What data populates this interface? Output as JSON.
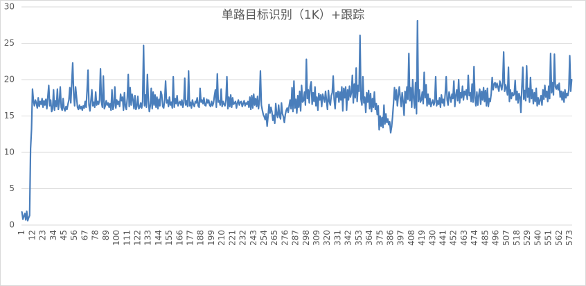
{
  "chart_data": {
    "type": "line",
    "title": "单路目标识别（1K）+跟踪",
    "color": "#4a7ebb",
    "grid": true,
    "ylim": [
      0,
      30
    ],
    "yticks": [
      0,
      5,
      10,
      15,
      20,
      25,
      30
    ],
    "categories": [
      "1",
      null,
      null,
      null,
      null,
      null,
      null,
      null,
      null,
      null,
      null,
      "12",
      null,
      null,
      null,
      null,
      null,
      null,
      null,
      null,
      null,
      null,
      "23",
      null,
      null,
      null,
      null,
      null,
      null,
      null,
      null,
      null,
      null,
      "34",
      null,
      null,
      null,
      null,
      null,
      null,
      null,
      null,
      null,
      null,
      "45",
      null,
      null,
      null,
      null,
      null,
      null,
      null,
      null,
      null,
      null,
      "56",
      null,
      null,
      null,
      null,
      null,
      null,
      null,
      null,
      null,
      null,
      "67",
      null,
      null,
      null,
      null,
      null,
      null,
      null,
      null,
      null,
      null,
      "78",
      null,
      null,
      null,
      null,
      null,
      null,
      null,
      null,
      null,
      null,
      "89",
      null,
      null,
      null,
      null,
      null,
      null,
      null,
      null,
      null,
      null,
      "100",
      null,
      null,
      null,
      null,
      null,
      null,
      null,
      null,
      null,
      null,
      "111",
      null,
      null,
      null,
      null,
      null,
      null,
      null,
      null,
      null,
      null,
      "122",
      null,
      null,
      null,
      null,
      null,
      null,
      null,
      null,
      null,
      null,
      "133",
      null,
      null,
      null,
      null,
      null,
      null,
      null,
      null,
      null,
      null,
      "144",
      null,
      null,
      null,
      null,
      null,
      null,
      null,
      null,
      null,
      null,
      "155",
      null,
      null,
      null,
      null,
      null,
      null,
      null,
      null,
      null,
      null,
      "166",
      null,
      null,
      null,
      null,
      null,
      null,
      null,
      null,
      null,
      null,
      "177",
      null,
      null,
      null,
      null,
      null,
      null,
      null,
      null,
      null,
      null,
      "188",
      null,
      null,
      null,
      null,
      null,
      null,
      null,
      null,
      null,
      null,
      "199",
      null,
      null,
      null,
      null,
      null,
      null,
      null,
      null,
      null,
      null,
      "210",
      null,
      null,
      null,
      null,
      null,
      null,
      null,
      null,
      null,
      null,
      "221",
      null,
      null,
      null,
      null,
      null,
      null,
      null,
      null,
      null,
      null,
      "232",
      null,
      null,
      null,
      null,
      null,
      null,
      null,
      null,
      null,
      null,
      "243",
      null,
      null,
      null,
      null,
      null,
      null,
      null,
      null,
      null,
      null,
      "254",
      null,
      null,
      null,
      null,
      null,
      null,
      null,
      null,
      null,
      null,
      "265",
      null,
      null,
      null,
      null,
      null,
      null,
      null,
      null,
      null,
      null,
      "276",
      null,
      null,
      null,
      null,
      null,
      null,
      null,
      null,
      null,
      null,
      "287",
      null,
      null,
      null,
      null,
      null,
      null,
      null,
      null,
      null,
      null,
      "298",
      null,
      null,
      null,
      null,
      null,
      null,
      null,
      null,
      null,
      null,
      "309",
      null,
      null,
      null,
      null,
      null,
      null,
      null,
      null,
      null,
      null,
      "320",
      null,
      null,
      null,
      null,
      null,
      null,
      null,
      null,
      null,
      null,
      "331",
      null,
      null,
      null,
      null,
      null,
      null,
      null,
      null,
      null,
      null,
      "342",
      null,
      null,
      null,
      null,
      null,
      null,
      null,
      null,
      null,
      null,
      "353",
      null,
      null,
      null,
      null,
      null,
      null,
      null,
      null,
      null,
      null,
      "364",
      null,
      null,
      null,
      null,
      null,
      null,
      null,
      null,
      null,
      null,
      "375",
      null,
      null,
      null,
      null,
      null,
      null,
      null,
      null,
      null,
      null,
      "386",
      null,
      null,
      null,
      null,
      null,
      null,
      null,
      null,
      null,
      null,
      "397",
      null,
      null,
      null,
      null,
      null,
      null,
      null,
      null,
      null,
      null,
      "408",
      null,
      null,
      null,
      null,
      null,
      null,
      null,
      null,
      null,
      null,
      "419",
      null,
      null,
      null,
      null,
      null,
      null,
      null,
      null,
      null,
      null,
      "430",
      null,
      null,
      null,
      null,
      null,
      null,
      null,
      null,
      null,
      null,
      "441",
      null,
      null,
      null,
      null,
      null,
      null,
      null,
      null,
      null,
      null,
      "452",
      null,
      null,
      null,
      null,
      null,
      null,
      null,
      null,
      null,
      null,
      "463",
      null,
      null,
      null,
      null,
      null,
      null,
      null,
      null,
      null,
      null,
      "474",
      null,
      null,
      null,
      null,
      null,
      null,
      null,
      null,
      null,
      null,
      "485",
      null,
      null,
      null,
      null,
      null,
      null,
      null,
      null,
      null,
      null,
      "496",
      null,
      null,
      null,
      null,
      null,
      null,
      null,
      null,
      null,
      null,
      "507",
      null,
      null,
      null,
      null,
      null,
      null,
      null,
      null,
      null,
      null,
      "518",
      null,
      null,
      null,
      null,
      null,
      null,
      null,
      null,
      null,
      null,
      "529",
      null,
      null,
      null,
      null,
      null,
      null,
      null,
      null,
      null,
      null,
      "540",
      null,
      null,
      null,
      null,
      null,
      null,
      null,
      null,
      null,
      null,
      "551",
      null,
      null,
      null,
      null,
      null,
      null,
      null,
      null,
      null,
      null,
      "562",
      null,
      null,
      null,
      null,
      null,
      null,
      null,
      null,
      null,
      null,
      "573",
      null,
      null
    ],
    "values": [
      1.8,
      0.8,
      1.2,
      1.6,
      0.7,
      1.9,
      0.6,
      1.0,
      1.3,
      10.5,
      13.2,
      18.7,
      17.1,
      16.4,
      17.2,
      16.8,
      16.1,
      17.5,
      16.3,
      17.0,
      16.6,
      17.4,
      16.2,
      17.1,
      16.5,
      17.3,
      16.0,
      17.6,
      19.2,
      16.4,
      17.2,
      15.6,
      16.0,
      18.6,
      15.8,
      17.1,
      16.3,
      18.7,
      15.9,
      16.8,
      19.0,
      16.2,
      15.8,
      17.4,
      16.0,
      15.7,
      16.3,
      15.9,
      16.6,
      17.2,
      18.9,
      16.8,
      19.5,
      22.3,
      18.1,
      16.4,
      19.0,
      17.6,
      16.2,
      15.9,
      16.5,
      16.0,
      16.3,
      15.8,
      16.4,
      16.1,
      17.0,
      16.2,
      18.5,
      21.3,
      16.5,
      15.7,
      17.1,
      18.6,
      16.4,
      16.9,
      16.2,
      18.3,
      16.5,
      17.0,
      16.6,
      17.2,
      21.5,
      16.9,
      16.2,
      20.5,
      16.0,
      16.4,
      17.1,
      16.5,
      16.8,
      16.2,
      16.7,
      15.8,
      18.6,
      15.9,
      16.4,
      19.0,
      16.1,
      17.2,
      16.6,
      17.0,
      16.3,
      18.0,
      17.1,
      17.6,
      15.8,
      18.2,
      16.3,
      15.9,
      17.5,
      20.7,
      16.3,
      18.9,
      16.5,
      18.0,
      17.2,
      16.0,
      17.8,
      15.9,
      16.3,
      17.7,
      16.0,
      16.2,
      16.8,
      16.1,
      17.0,
      24.7,
      16.4,
      17.9,
      16.2,
      20.7,
      17.1,
      15.6,
      16.4,
      18.8,
      16.0,
      18.3,
      16.5,
      17.9,
      16.2,
      17.6,
      16.0,
      17.3,
      16.4,
      18.4,
      17.9,
      16.3,
      16.1,
      17.2,
      19.8,
      16.8,
      17.2,
      16.3,
      17.6,
      16.5,
      16.9,
      16.1,
      20.4,
      16.2,
      17.4,
      16.7,
      17.8,
      16.4,
      16.8,
      17.0,
      16.5,
      17.2,
      16.2,
      16.8,
      20.2,
      16.5,
      17.1,
      16.3,
      21.2,
      16.4,
      16.9,
      16.1,
      17.2,
      16.6,
      16.3,
      17.0,
      16.8,
      17.5,
      16.4,
      16.2,
      18.8,
      16.9,
      17.2,
      16.7,
      17.5,
      16.5,
      16.4,
      17.3,
      16.8,
      17.2,
      16.5,
      16.3,
      17.0,
      16.4,
      16.8,
      17.8,
      18.6,
      16.2,
      20.8,
      16.9,
      17.1,
      16.5,
      18.7,
      16.3,
      17.0,
      16.6,
      16.4,
      17.2,
      20.4,
      16.0,
      17.6,
      16.3,
      17.9,
      16.2,
      17.5,
      16.6,
      16.8,
      17.0,
      16.1,
      16.8,
      17.2,
      16.5,
      16.9,
      17.0,
      16.3,
      16.7,
      17.1,
      16.4,
      16.8,
      16.6,
      17.0,
      16.2,
      17.6,
      15.9,
      17.8,
      16.1,
      18.0,
      16.5,
      17.4,
      16.3,
      17.7,
      16.0,
      17.2,
      21.2,
      16.5,
      15.8,
      15.2,
      14.9,
      14.5,
      15.3,
      13.6,
      15.0,
      16.6,
      15.4,
      16.2,
      15.6,
      14.4,
      15.1,
      14.0,
      16.7,
      15.2,
      14.8,
      16.5,
      15.0,
      14.6,
      16.8,
      15.3,
      14.9,
      14.1,
      15.2,
      15.8,
      16.1,
      15.5,
      16.4,
      17.2,
      16.0,
      18.9,
      15.6,
      19.8,
      16.1,
      17.3,
      15.4,
      17.8,
      16.2,
      18.4,
      15.7,
      19.2,
      16.9,
      17.1,
      18.3,
      16.5,
      22.8,
      17.4,
      18.6,
      16.8,
      19.1,
      19.7,
      16.6,
      18.2,
      17.0,
      19.0,
      16.4,
      17.6,
      15.8,
      18.1,
      17.2,
      17.9,
      16.3,
      18.0,
      17.5,
      16.9,
      18.4,
      17.1,
      15.9,
      18.5,
      17.0,
      16.5,
      17.8,
      18.2,
      20.5,
      17.3,
      16.0,
      18.2,
      17.6,
      18.4,
      16.9,
      18.3,
      17.2,
      19.0,
      15.7,
      18.8,
      17.5,
      19.0,
      15.8,
      18.6,
      17.2,
      19.1,
      17.6,
      18.2,
      20.6,
      16.8,
      19.4,
      17.5,
      21.6,
      17.0,
      19.2,
      18.4,
      26.1,
      17.3,
      16.5,
      20.4,
      16.8,
      17.6,
      15.5,
      18.2,
      16.9,
      18.5,
      16.0,
      18.1,
      15.6,
      17.4,
      16.2,
      18.3,
      15.9,
      16.7,
      15.2,
      16.4,
      13.1,
      15.0,
      13.6,
      14.8,
      13.4,
      16.5,
      13.9,
      15.3,
      14.1,
      14.6,
      13.8,
      14.2,
      12.7,
      13.5,
      14.9,
      16.8,
      18.9,
      17.2,
      18.6,
      16.4,
      17.8,
      19.0,
      17.5,
      16.3,
      18.2,
      17.0,
      15.1,
      18.4,
      16.8,
      19.0,
      17.3,
      23.6,
      17.1,
      18.9,
      16.2,
      20.0,
      17.4,
      16.1,
      19.6,
      15.3,
      28.1,
      17.0,
      18.6,
      16.9,
      17.2,
      18.3,
      16.7,
      21.0,
      17.5,
      19.3,
      16.4,
      18.0,
      16.6,
      17.4,
      16.3,
      16.8,
      17.2,
      16.5,
      16.9,
      20.4,
      16.4,
      17.1,
      16.6,
      17.5,
      16.2,
      17.9,
      16.8,
      17.3,
      16.4,
      18.1,
      20.4,
      17.2,
      16.5,
      18.3,
      17.6,
      16.9,
      18.0,
      17.4,
      19.8,
      16.3,
      17.8,
      18.6,
      17.1,
      20.0,
      16.8,
      18.2,
      17.5,
      19.1,
      17.2,
      18.4,
      17.9,
      18.6,
      17.3,
      20.6,
      17.8,
      18.2,
      17.0,
      19.4,
      16.9,
      21.8,
      17.5,
      16.4,
      18.3,
      16.5,
      17.9,
      18.7,
      16.6,
      18.4,
      17.2,
      18.9,
      17.0,
      18.5,
      16.4,
      18.8,
      16.3,
      17.4,
      17.0,
      18.1,
      20.3,
      18.6,
      19.4,
      19.6,
      18.9,
      19.5,
      19.0,
      18.4,
      19.8,
      19.2,
      18.6,
      19.6,
      23.8,
      18.4,
      19.3,
      18.8,
      17.9,
      21.7,
      17.0,
      18.6,
      17.4,
      18.2,
      17.8,
      18.0,
      19.9,
      17.2,
      18.4,
      16.8,
      18.1,
      17.6,
      15.5,
      19.0,
      21.7,
      17.3,
      18.5,
      17.1,
      21.9,
      17.6,
      18.8,
      16.9,
      20.3,
      17.4,
      18.6,
      16.7,
      18.2,
      17.0,
      18.8,
      16.4,
      17.5,
      16.6,
      17.2,
      17.8,
      16.5,
      18.6,
      17.3,
      19.2,
      17.6,
      18.4,
      17.0,
      19.1,
      17.4,
      23.6,
      18.2,
      19.6,
      17.9,
      23.5,
      19.0,
      18.7,
      19.3,
      18.6,
      19.5,
      17.6,
      18.4,
      17.2,
      18.3,
      16.9,
      18.6,
      17.5,
      18.1,
      17.8,
      18.6,
      23.3,
      18.4,
      20.0
    ]
  }
}
